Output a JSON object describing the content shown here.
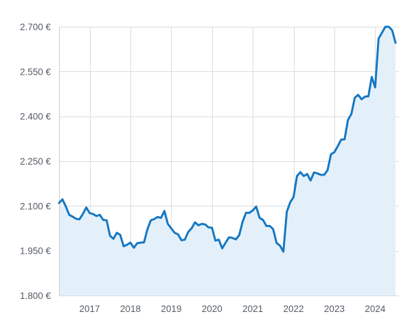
{
  "chart_data": {
    "type": "area",
    "title": "",
    "xlabel": "",
    "ylabel": "",
    "ylim": [
      1800,
      2700
    ],
    "y_ticks": [
      {
        "value": 1800,
        "label": "1.800 €"
      },
      {
        "value": 1950,
        "label": "1.950 €"
      },
      {
        "value": 2100,
        "label": "2.100 €"
      },
      {
        "value": 2250,
        "label": "2.250 €"
      },
      {
        "value": 2400,
        "label": "2.400 €"
      },
      {
        "value": 2550,
        "label": "2.550 €"
      },
      {
        "value": 2700,
        "label": "2.700 €"
      }
    ],
    "xlim": [
      "2016-04",
      "2024-08"
    ],
    "x_ticks": [
      {
        "value": "2017-01",
        "label": "2017"
      },
      {
        "value": "2018-01",
        "label": "2018"
      },
      {
        "value": "2019-01",
        "label": "2019"
      },
      {
        "value": "2020-01",
        "label": "2020"
      },
      {
        "value": "2021-01",
        "label": "2021"
      },
      {
        "value": "2022-01",
        "label": "2022"
      },
      {
        "value": "2023-01",
        "label": "2023"
      },
      {
        "value": "2024-01",
        "label": "2024"
      }
    ],
    "grid": true,
    "legend": "none",
    "colors": {
      "line": "#1577c2",
      "fill": "#e4f0f9",
      "grid": "#d9dce1",
      "axis_text": "#555b64"
    },
    "series": [
      {
        "points": [
          [
            "2016-04",
            2110
          ],
          [
            "2016-05",
            2122
          ],
          [
            "2016-06",
            2098
          ],
          [
            "2016-07",
            2070
          ],
          [
            "2016-08",
            2064
          ],
          [
            "2016-09",
            2057
          ],
          [
            "2016-10",
            2055
          ],
          [
            "2016-11",
            2073
          ],
          [
            "2016-12",
            2095
          ],
          [
            "2017-01",
            2076
          ],
          [
            "2017-02",
            2073
          ],
          [
            "2017-03",
            2066
          ],
          [
            "2017-04",
            2070
          ],
          [
            "2017-05",
            2053
          ],
          [
            "2017-06",
            2052
          ],
          [
            "2017-07",
            2000
          ],
          [
            "2017-08",
            1990
          ],
          [
            "2017-09",
            2010
          ],
          [
            "2017-10",
            2003
          ],
          [
            "2017-11",
            1965
          ],
          [
            "2017-12",
            1970
          ],
          [
            "2018-01",
            1977
          ],
          [
            "2018-02",
            1960
          ],
          [
            "2018-03",
            1975
          ],
          [
            "2018-04",
            1977
          ],
          [
            "2018-05",
            1978
          ],
          [
            "2018-06",
            2022
          ],
          [
            "2018-07",
            2052
          ],
          [
            "2018-08",
            2056
          ],
          [
            "2018-09",
            2063
          ],
          [
            "2018-10",
            2060
          ],
          [
            "2018-11",
            2083
          ],
          [
            "2018-12",
            2040
          ],
          [
            "2019-01",
            2025
          ],
          [
            "2019-02",
            2010
          ],
          [
            "2019-03",
            2005
          ],
          [
            "2019-04",
            1985
          ],
          [
            "2019-05",
            1987
          ],
          [
            "2019-06",
            2013
          ],
          [
            "2019-07",
            2025
          ],
          [
            "2019-08",
            2045
          ],
          [
            "2019-09",
            2035
          ],
          [
            "2019-10",
            2040
          ],
          [
            "2019-11",
            2038
          ],
          [
            "2019-12",
            2028
          ],
          [
            "2020-01",
            2027
          ],
          [
            "2020-02",
            1984
          ],
          [
            "2020-03",
            1987
          ],
          [
            "2020-04",
            1958
          ],
          [
            "2020-05",
            1977
          ],
          [
            "2020-06",
            1995
          ],
          [
            "2020-07",
            1993
          ],
          [
            "2020-08",
            1988
          ],
          [
            "2020-09",
            2002
          ],
          [
            "2020-10",
            2047
          ],
          [
            "2020-11",
            2077
          ],
          [
            "2020-12",
            2077
          ],
          [
            "2021-01",
            2085
          ],
          [
            "2021-02",
            2098
          ],
          [
            "2021-03",
            2060
          ],
          [
            "2021-04",
            2053
          ],
          [
            "2021-05",
            2033
          ],
          [
            "2021-06",
            2033
          ],
          [
            "2021-07",
            2022
          ],
          [
            "2021-08",
            1976
          ],
          [
            "2021-09",
            1967
          ],
          [
            "2021-10",
            1947
          ],
          [
            "2021-11",
            2080
          ],
          [
            "2021-12",
            2112
          ],
          [
            "2022-01",
            2130
          ],
          [
            "2022-02",
            2200
          ],
          [
            "2022-03",
            2213
          ],
          [
            "2022-04",
            2200
          ],
          [
            "2022-05",
            2207
          ],
          [
            "2022-06",
            2185
          ],
          [
            "2022-07",
            2212
          ],
          [
            "2022-08",
            2209
          ],
          [
            "2022-09",
            2204
          ],
          [
            "2022-10",
            2204
          ],
          [
            "2022-11",
            2220
          ],
          [
            "2022-12",
            2273
          ],
          [
            "2023-01",
            2280
          ],
          [
            "2023-02",
            2300
          ],
          [
            "2023-03",
            2322
          ],
          [
            "2023-04",
            2323
          ],
          [
            "2023-05",
            2388
          ],
          [
            "2023-06",
            2408
          ],
          [
            "2023-07",
            2462
          ],
          [
            "2023-08",
            2472
          ],
          [
            "2023-09",
            2457
          ],
          [
            "2023-10",
            2466
          ],
          [
            "2023-11",
            2467
          ],
          [
            "2023-12",
            2532
          ],
          [
            "2024-01",
            2497
          ],
          [
            "2024-02",
            2660
          ],
          [
            "2024-03",
            2680
          ],
          [
            "2024-04",
            2700
          ],
          [
            "2024-05",
            2700
          ],
          [
            "2024-06",
            2688
          ],
          [
            "2024-07",
            2646
          ]
        ]
      }
    ]
  }
}
